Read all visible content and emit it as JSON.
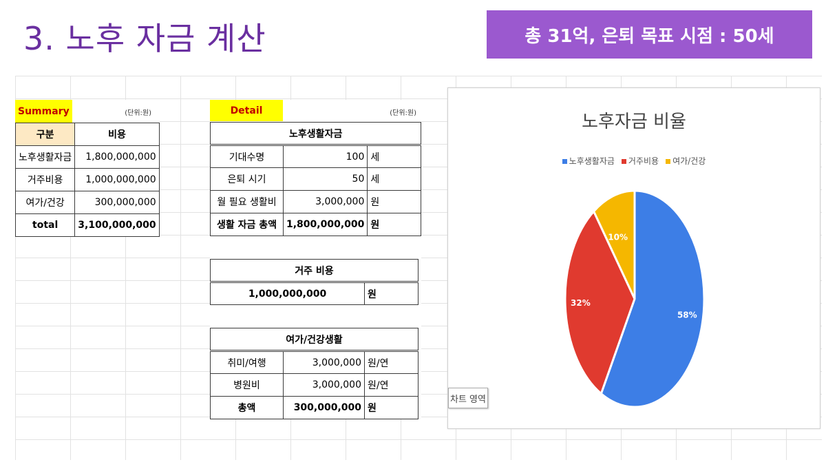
{
  "title": "3. 노후 자금 계산",
  "badge": "총 31억, 은퇴 목표 시점 : 50세",
  "summary": {
    "label": "Summary",
    "unit": "(단위:원)",
    "header": [
      "구분",
      "비용"
    ],
    "rows": [
      {
        "name": "노후생활자금",
        "value": "1,800,000,000"
      },
      {
        "name": "거주비용",
        "value": "1,000,000,000"
      },
      {
        "name": "여가/건강",
        "value": "300,000,000"
      }
    ],
    "total_label": "total",
    "total_value": "3,100,000,000"
  },
  "detail": {
    "label": "Detail",
    "unit": "(단위:원)",
    "living": {
      "title": "노후생활자금",
      "rows": [
        {
          "name": "기대수명",
          "value": "100",
          "unit": "세"
        },
        {
          "name": "은퇴 시기",
          "value": "50",
          "unit": "세"
        },
        {
          "name": "월 필요 생활비",
          "value": "3,000,000",
          "unit": "원"
        },
        {
          "name": "생활 자금 총액",
          "value": "1,800,000,000",
          "unit": "원"
        }
      ]
    },
    "housing": {
      "title": "거주 비용",
      "value": "1,000,000,000",
      "unit": "원"
    },
    "leisure": {
      "title": "여가/건강생활",
      "rows": [
        {
          "name": "취미/여행",
          "value": "3,000,000",
          "unit": "원/연"
        },
        {
          "name": "병원비",
          "value": "3,000,000",
          "unit": "원/연"
        },
        {
          "name": "총액",
          "value": "300,000,000",
          "unit": "원"
        }
      ]
    }
  },
  "chart": {
    "title": "노후자금 비율",
    "area_label": "차트 영역"
  },
  "chart_data": {
    "type": "pie",
    "title": "노후자금 비율",
    "legend_position": "top",
    "categories": [
      "노후생활자금",
      "거주비용",
      "여가/건강"
    ],
    "values": [
      58,
      32,
      10
    ],
    "labels": [
      "58%",
      "32%",
      "10%"
    ],
    "colors": [
      "#3d7ee6",
      "#e03a2f",
      "#f5b700"
    ]
  }
}
